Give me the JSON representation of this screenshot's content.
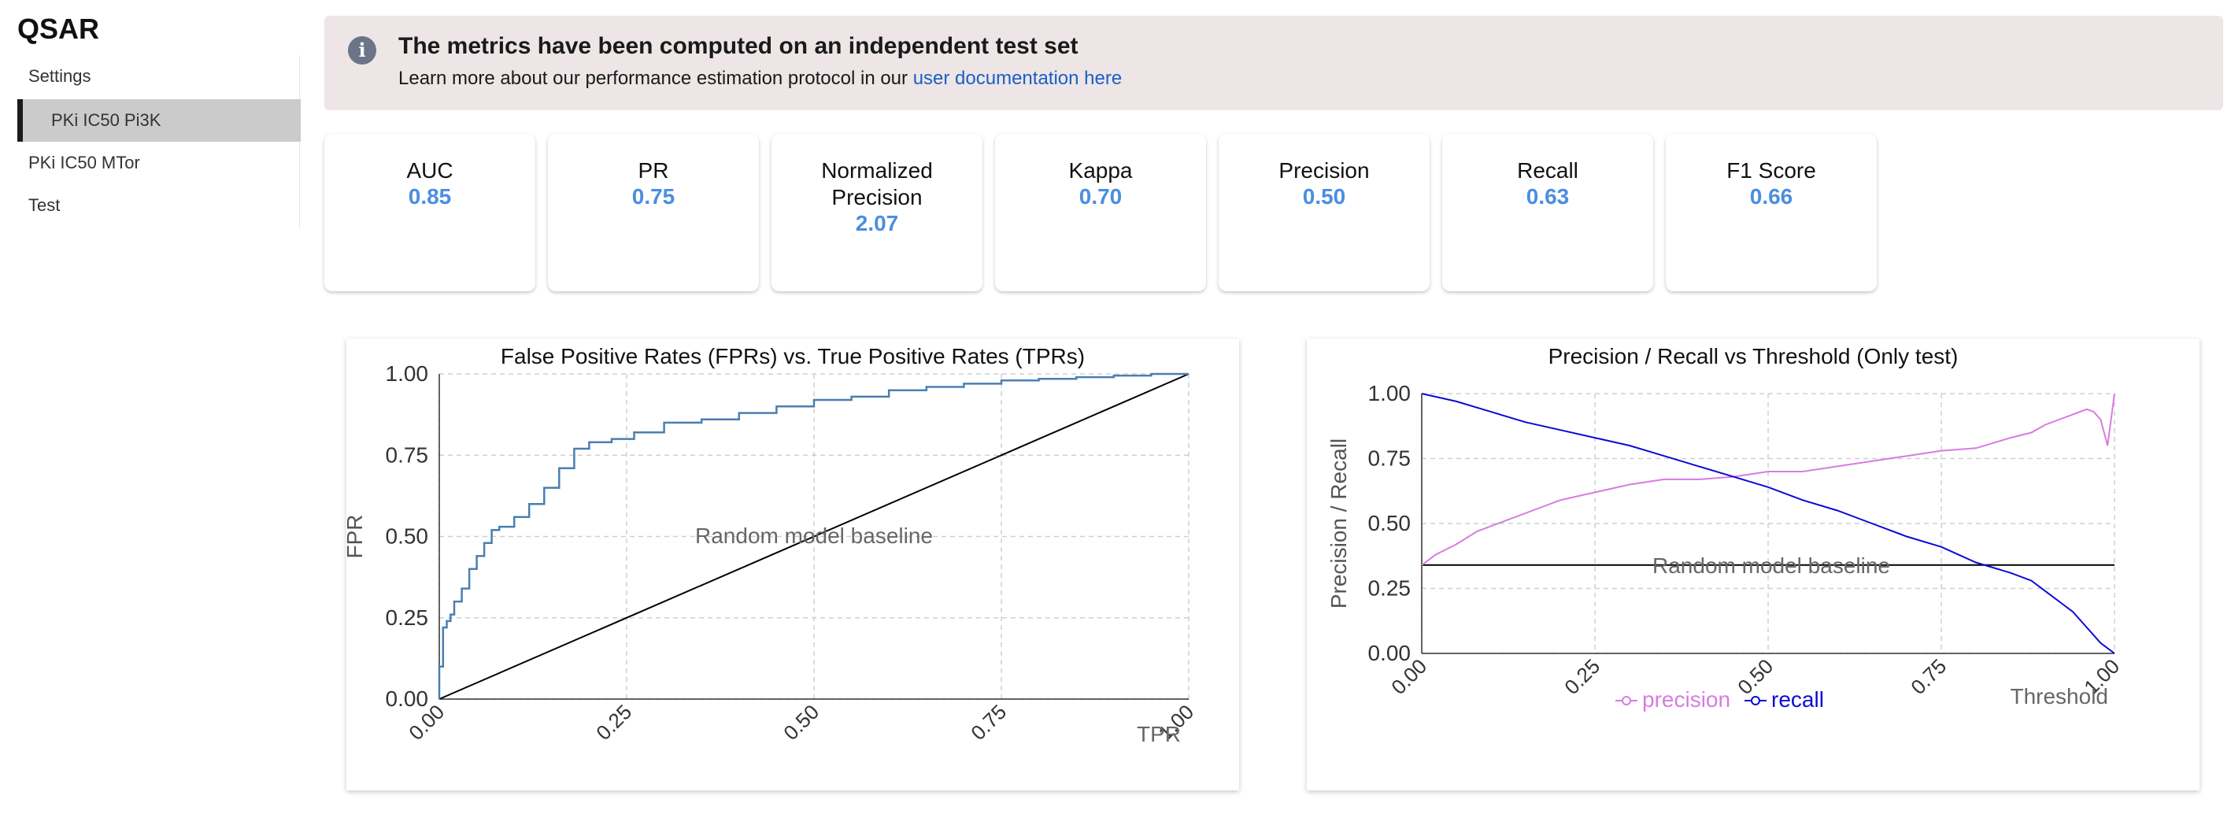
{
  "app": {
    "title": "QSAR"
  },
  "sidebar": {
    "settings_label": "Settings",
    "items": [
      {
        "label": "PKi IC50 Pi3K",
        "active": true
      },
      {
        "label": "PKi IC50 MTor",
        "active": false
      },
      {
        "label": "Test",
        "active": false
      }
    ]
  },
  "alert": {
    "icon": "info-icon",
    "title": "The metrics have been computed on an independent test set",
    "text": "Learn more about our performance estimation protocol in our ",
    "link": "user documentation here"
  },
  "metrics": [
    {
      "label": "AUC",
      "value": "0.85"
    },
    {
      "label": "PR",
      "value": "0.75"
    },
    {
      "label": "Normalized Precision",
      "value": "2.07"
    },
    {
      "label": "Kappa",
      "value": "0.70"
    },
    {
      "label": "Precision",
      "value": "0.50"
    },
    {
      "label": "Recall",
      "value": "0.63"
    },
    {
      "label": "F1 Score",
      "value": "0.66"
    }
  ],
  "colors": {
    "accent": "#4a8ee0",
    "roc_line": "#4a7fb0",
    "precision": "#d77ce0",
    "recall": "#0b0bd6",
    "baseline": "#000000"
  },
  "chart_data": [
    {
      "type": "line",
      "title": "False Positive Rates (FPRs) vs. True Positive Rates (TPRs)",
      "xlabel": "TPR",
      "ylabel": "FPR",
      "xlim": [
        0,
        1
      ],
      "ylim": [
        0,
        1
      ],
      "xticks": [
        "0.00",
        "0.25",
        "0.50",
        "0.75",
        "1.00"
      ],
      "yticks": [
        "0.00",
        "0.25",
        "0.50",
        "0.75",
        "1.00"
      ],
      "grid": true,
      "annotation": "Random model baseline",
      "series": [
        {
          "x": [
            0,
            0,
            0.005,
            0.005,
            0.01,
            0.01,
            0.015,
            0.015,
            0.02,
            0.02,
            0.03,
            0.03,
            0.04,
            0.04,
            0.05,
            0.05,
            0.06,
            0.06,
            0.07,
            0.07,
            0.08,
            0.08,
            0.1,
            0.1,
            0.12,
            0.12,
            0.14,
            0.14,
            0.16,
            0.16,
            0.18,
            0.18,
            0.2,
            0.2,
            0.23,
            0.23,
            0.26,
            0.26,
            0.3,
            0.3,
            0.35,
            0.35,
            0.4,
            0.4,
            0.45,
            0.45,
            0.5,
            0.5,
            0.55,
            0.55,
            0.6,
            0.6,
            0.65,
            0.65,
            0.7,
            0.7,
            0.75,
            0.75,
            0.8,
            0.8,
            0.85,
            0.85,
            0.9,
            0.9,
            0.95,
            0.95,
            1.0,
            1.0
          ],
          "y": [
            0,
            0.1,
            0.1,
            0.22,
            0.22,
            0.24,
            0.24,
            0.26,
            0.26,
            0.3,
            0.3,
            0.34,
            0.34,
            0.4,
            0.4,
            0.44,
            0.44,
            0.48,
            0.48,
            0.52,
            0.52,
            0.53,
            0.53,
            0.56,
            0.56,
            0.6,
            0.6,
            0.65,
            0.65,
            0.71,
            0.71,
            0.77,
            0.77,
            0.79,
            0.79,
            0.8,
            0.8,
            0.82,
            0.82,
            0.85,
            0.85,
            0.86,
            0.86,
            0.88,
            0.88,
            0.9,
            0.9,
            0.92,
            0.92,
            0.93,
            0.93,
            0.95,
            0.95,
            0.96,
            0.96,
            0.97,
            0.97,
            0.98,
            0.98,
            0.985,
            0.985,
            0.99,
            0.99,
            0.995,
            0.995,
            1.0,
            1.0,
            1.0
          ]
        },
        {
          "x": [
            0,
            1
          ],
          "y": [
            0,
            1
          ]
        }
      ]
    },
    {
      "type": "line",
      "title": "Precision / Recall vs Threshold (Only test)",
      "xlabel": "Threshold",
      "ylabel": "Precision / Recall",
      "xlim": [
        0,
        1
      ],
      "ylim": [
        0,
        1
      ],
      "xticks": [
        "0.00",
        "0.25",
        "0.50",
        "0.75",
        "1.00"
      ],
      "yticks": [
        "0.00",
        "0.25",
        "0.50",
        "0.75",
        "1.00"
      ],
      "grid": true,
      "annotation": "Random model baseline",
      "legend": "bottom",
      "baseline": 0.34,
      "series": [
        {
          "name": "precision",
          "x": [
            0.0,
            0.02,
            0.05,
            0.08,
            0.12,
            0.16,
            0.2,
            0.25,
            0.3,
            0.35,
            0.4,
            0.45,
            0.5,
            0.55,
            0.6,
            0.65,
            0.7,
            0.75,
            0.8,
            0.85,
            0.88,
            0.9,
            0.92,
            0.94,
            0.96,
            0.97,
            0.98,
            0.99,
            1.0
          ],
          "y": [
            0.34,
            0.38,
            0.42,
            0.47,
            0.51,
            0.55,
            0.59,
            0.62,
            0.65,
            0.67,
            0.67,
            0.68,
            0.7,
            0.7,
            0.72,
            0.74,
            0.76,
            0.78,
            0.79,
            0.83,
            0.85,
            0.88,
            0.9,
            0.92,
            0.94,
            0.93,
            0.9,
            0.8,
            1.0
          ]
        },
        {
          "name": "recall",
          "x": [
            0.0,
            0.05,
            0.1,
            0.15,
            0.2,
            0.25,
            0.3,
            0.35,
            0.4,
            0.45,
            0.5,
            0.55,
            0.6,
            0.65,
            0.7,
            0.75,
            0.8,
            0.85,
            0.88,
            0.9,
            0.92,
            0.94,
            0.96,
            0.97,
            0.98,
            0.99,
            1.0
          ],
          "y": [
            1.0,
            0.97,
            0.93,
            0.89,
            0.86,
            0.83,
            0.8,
            0.76,
            0.72,
            0.68,
            0.64,
            0.59,
            0.55,
            0.5,
            0.45,
            0.41,
            0.35,
            0.31,
            0.28,
            0.24,
            0.2,
            0.16,
            0.1,
            0.07,
            0.04,
            0.02,
            0.0
          ]
        }
      ]
    }
  ]
}
